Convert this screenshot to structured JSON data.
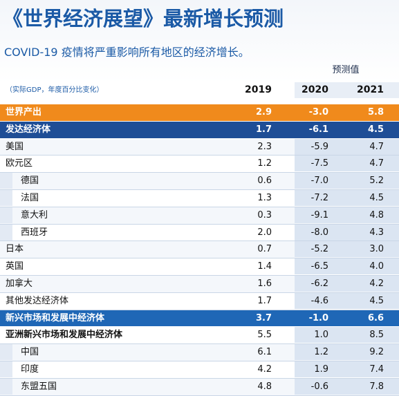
{
  "header": {
    "title": "《世界经济展望》最新增长预测",
    "subtitle": "COVID-19 疫情将严重影响所有地区的经济增长。"
  },
  "table": {
    "forecast_label": "预测值",
    "columns": [
      "（实际GDP，年度百分比变化）",
      "2019",
      "2020",
      "2021"
    ],
    "rows": [
      [
        "世界产出",
        "2.9",
        "-3.0",
        "5.8"
      ],
      [
        "发达经济体",
        "1.7",
        "-6.1",
        "4.5"
      ],
      [
        "美国",
        "2.3",
        "-5.9",
        "4.7"
      ],
      [
        "欧元区",
        "1.2",
        "-7.5",
        "4.7"
      ],
      [
        "德国",
        "0.6",
        "-7.0",
        "5.2"
      ],
      [
        "法国",
        "1.3",
        "-7.2",
        "4.5"
      ],
      [
        "意大利",
        "0.3",
        "-9.1",
        "4.8"
      ],
      [
        "西班牙",
        "2.0",
        "-8.0",
        "4.3"
      ],
      [
        "日本",
        "0.7",
        "-5.2",
        "3.0"
      ],
      [
        "英国",
        "1.4",
        "-6.5",
        "4.0"
      ],
      [
        "加拿大",
        "1.6",
        "-6.2",
        "4.2"
      ],
      [
        "其他发达经济体",
        "1.7",
        "-4.6",
        "4.5"
      ],
      [
        "新兴市场和发展中经济体",
        "3.7",
        "-1.0",
        "6.6"
      ],
      [
        "亚洲新兴市场和发展中经济体",
        "5.5",
        "1.0",
        "8.5"
      ],
      [
        "中国",
        "6.1",
        "1.2",
        "9.2"
      ],
      [
        "印度",
        "4.2",
        "1.9",
        "7.4"
      ],
      [
        "东盟五国",
        "4.8",
        "-0.6",
        "7.8"
      ]
    ]
  }
}
